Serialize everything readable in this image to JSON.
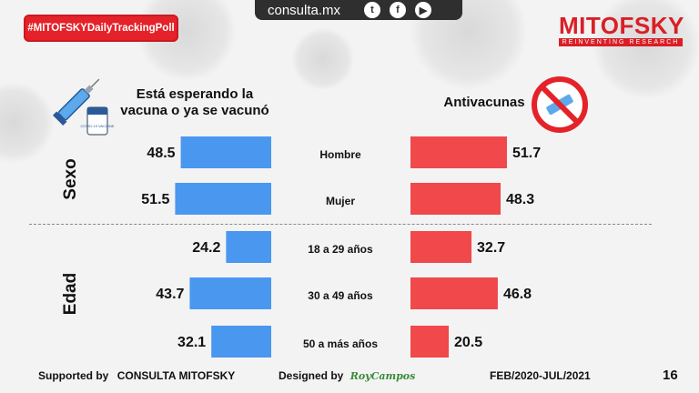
{
  "header": {
    "hashtag": "#MITOFSKYDailyTrackingPoll",
    "site": "consulta.mx",
    "brand": "MITOFSKY",
    "brand_tagline": "REINVENTING RESEARCH"
  },
  "vaccine_label": "COVID-19 VACCINE",
  "chart_data": {
    "type": "bar",
    "orientation": "horizontal-back-to-back",
    "series": [
      {
        "name": "Está esperando la vacuna o ya se vacunó",
        "color": "#4a97f0",
        "values": [
          48.5,
          51.5,
          24.2,
          43.7,
          32.1
        ]
      },
      {
        "name": "Antivacunas",
        "color": "#f0484b",
        "values": [
          51.7,
          48.3,
          32.7,
          46.8,
          20.5
        ]
      }
    ],
    "categories": [
      "Hombre",
      "Mujer",
      "18 a 29 años",
      "30 a 49 años",
      "50 a más años"
    ],
    "groups": [
      {
        "label": "Sexo",
        "categories": [
          0,
          1
        ]
      },
      {
        "label": "Edad",
        "categories": [
          2,
          3,
          4
        ]
      }
    ]
  },
  "footer": {
    "supported_label": "Supported by",
    "supported_name": "CONSULTA  MITOFSKY",
    "designed_label": "Designed by",
    "designed_name": "RoyCampos",
    "date_range": "FEB/2020-JUL/2021",
    "page": "16"
  },
  "colors": {
    "accent": "#e52229",
    "dark": "#2f2f2f"
  },
  "icons": {
    "social": [
      "twitter-icon",
      "facebook-icon",
      "youtube-icon"
    ]
  }
}
